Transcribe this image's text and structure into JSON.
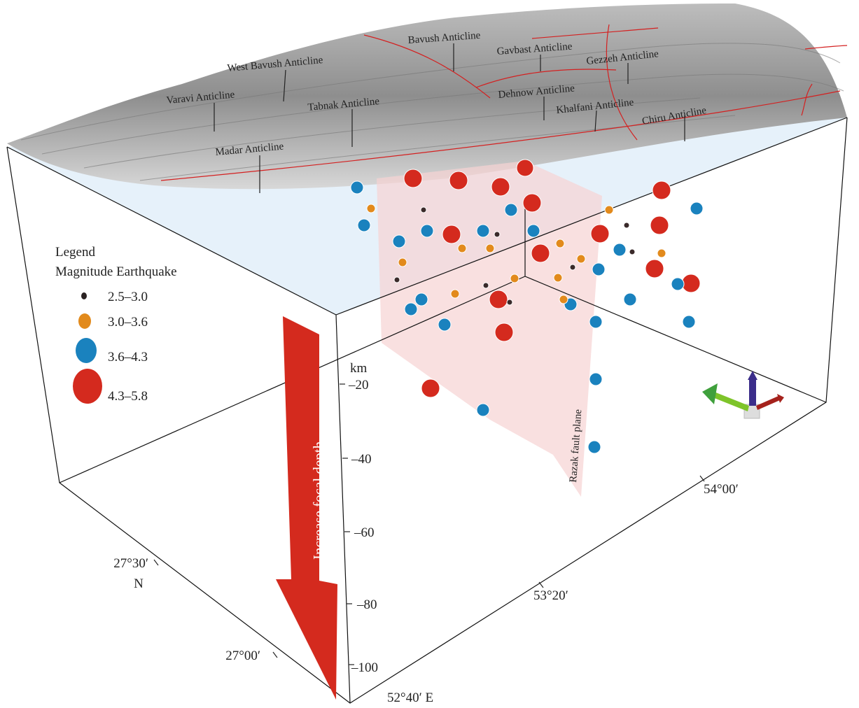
{
  "anticlines": [
    "Bavush Anticline",
    "West Bavush Anticline",
    "Gavbast Anticline",
    "Gezzeh Anticline",
    "Varavi Anticline",
    "Tabnak Anticline",
    "Dehnow Anticline",
    "Khalfani Anticline",
    "Chiru Anticline",
    "Madar Anticline"
  ],
  "legend": {
    "title": "Legend",
    "subtitle": "Magnitude Earthquake",
    "items": [
      "2.5–3.0",
      "3.0–3.6",
      "3.6–4.3",
      "4.3–5.8"
    ]
  },
  "depth_axis": {
    "unit": "km",
    "ticks": [
      "–20",
      "–40",
      "–60",
      "–80",
      "–100"
    ]
  },
  "longitude_ticks": [
    "52°40′ E",
    "53°20′",
    "54°00′"
  ],
  "latitude_ticks": [
    "27°00′",
    "27°30′",
    "N"
  ],
  "arrow_label": "Increase focal depth",
  "fault_label": "Razak fault plane"
}
